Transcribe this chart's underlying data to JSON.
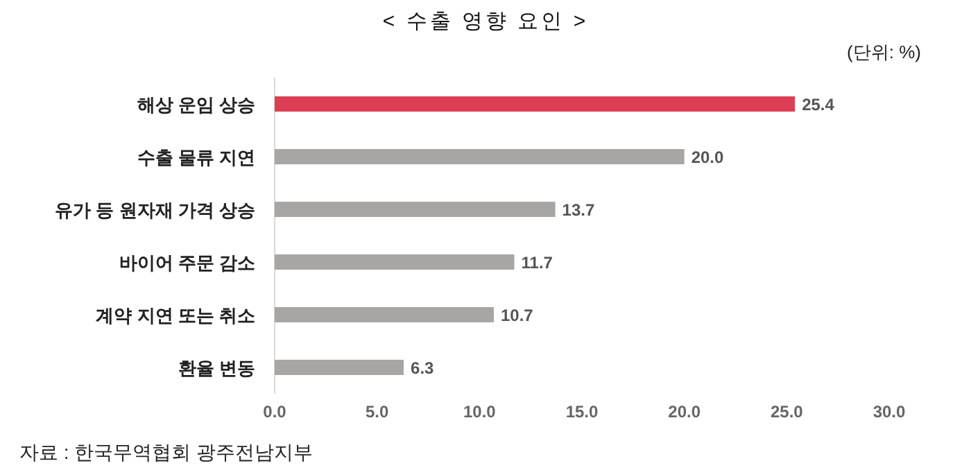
{
  "chart_data": {
    "type": "bar",
    "orientation": "horizontal",
    "title": "< 수출 영향 요인 >",
    "categories": [
      "해상 운임 상승",
      "수출 물류 지연",
      "유가 등 원자재 가격 상승",
      "바이어 주문 감소",
      "계약 지연 또는 취소",
      "환율 변동"
    ],
    "values": [
      25.4,
      20.0,
      13.7,
      11.7,
      10.7,
      6.3
    ],
    "colors": [
      "#dc3f55",
      "#a8a5a5",
      "#a8a5a5",
      "#a8a5a5",
      "#a8a5a5",
      "#a8a5a5"
    ],
    "value_labels": [
      "25.4",
      "20.0",
      "13.7",
      "11.7",
      "10.7",
      "6.3"
    ],
    "xlim": [
      0,
      30
    ],
    "xticks": [
      {
        "value": 0,
        "label": "0.0"
      },
      {
        "value": 5,
        "label": "5.0"
      },
      {
        "value": 10,
        "label": "10.0"
      },
      {
        "value": 15,
        "label": "15.0"
      },
      {
        "value": 20,
        "label": "20.0"
      },
      {
        "value": 25,
        "label": "25.0"
      },
      {
        "value": 30,
        "label": "30.0"
      }
    ],
    "grid": false,
    "annotations": [
      "(단위: %)",
      "자료 : 한국무역협회 광주전남지부"
    ]
  }
}
